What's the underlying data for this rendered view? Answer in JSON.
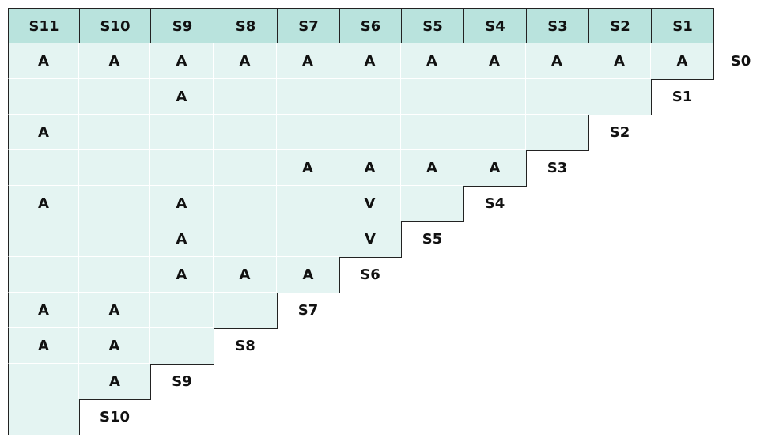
{
  "header": [
    "S11",
    "S10",
    "S9",
    "S8",
    "S7",
    "S6",
    "S5",
    "S4",
    "S3",
    "S2",
    "S1"
  ],
  "rows": [
    {
      "label": "S0",
      "cells": [
        "A",
        "A",
        "A",
        "A",
        "A",
        "A",
        "A",
        "A",
        "A",
        "A",
        "A"
      ]
    },
    {
      "label": "S1",
      "cells": [
        null,
        null,
        "A",
        null,
        null,
        null,
        null,
        null,
        null,
        null
      ]
    },
    {
      "label": "S2",
      "cells": [
        "A",
        null,
        null,
        null,
        null,
        null,
        null,
        null,
        null
      ]
    },
    {
      "label": "S3",
      "cells": [
        null,
        null,
        null,
        null,
        "A",
        "A",
        "A",
        "A"
      ]
    },
    {
      "label": "S4",
      "cells": [
        "A",
        null,
        "A",
        null,
        null,
        "V",
        null
      ]
    },
    {
      "label": "S5",
      "cells": [
        null,
        null,
        "A",
        null,
        null,
        "V"
      ]
    },
    {
      "label": "S6",
      "cells": [
        null,
        null,
        "A",
        "A",
        "A"
      ]
    },
    {
      "label": "S7",
      "cells": [
        "A",
        "A",
        null,
        null
      ]
    },
    {
      "label": "S8",
      "cells": [
        "A",
        "A",
        null
      ]
    },
    {
      "label": "S9",
      "cells": [
        null,
        "A"
      ]
    },
    {
      "label": "S10",
      "cells": [
        null
      ]
    }
  ]
}
